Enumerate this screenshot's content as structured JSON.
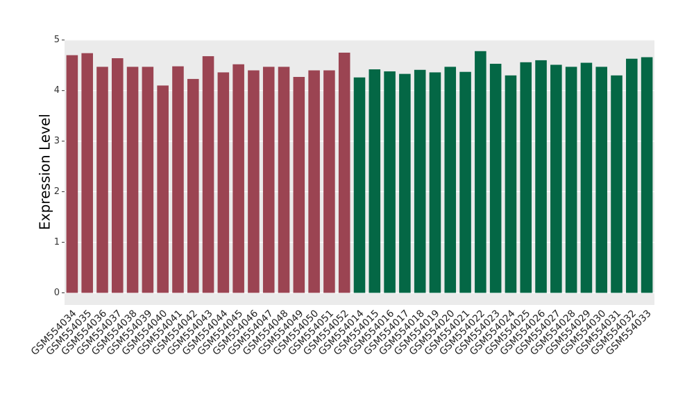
{
  "chart_data": {
    "type": "bar",
    "y_label": "Expression Level",
    "categories": [
      "GSM554034",
      "GSM554035",
      "GSM554036",
      "GSM554037",
      "GSM554038",
      "GSM554039",
      "GSM554040",
      "GSM554041",
      "GSM554042",
      "GSM554043",
      "GSM554044",
      "GSM554045",
      "GSM554046",
      "GSM554047",
      "GSM554048",
      "GSM554049",
      "GSM554050",
      "GSM554051",
      "GSM554052",
      "GSM554014",
      "GSM554015",
      "GSM554016",
      "GSM554017",
      "GSM554018",
      "GSM554019",
      "GSM554020",
      "GSM554021",
      "GSM554022",
      "GSM554023",
      "GSM554024",
      "GSM554025",
      "GSM554026",
      "GSM554027",
      "GSM554028",
      "GSM554029",
      "GSM554030",
      "GSM554031",
      "GSM554032",
      "GSM554033"
    ],
    "values": [
      4.7,
      4.74,
      4.47,
      4.64,
      4.47,
      4.47,
      4.1,
      4.48,
      4.23,
      4.68,
      4.36,
      4.52,
      4.4,
      4.47,
      4.47,
      4.27,
      4.4,
      4.4,
      4.75,
      4.26,
      4.42,
      4.38,
      4.33,
      4.41,
      4.36,
      4.47,
      4.37,
      4.78,
      4.53,
      4.3,
      4.56,
      4.6,
      4.51,
      4.47,
      4.55,
      4.47,
      4.3,
      4.63,
      4.66
    ],
    "colors": [
      "#9b4452",
      "#9b4452",
      "#9b4452",
      "#9b4452",
      "#9b4452",
      "#9b4452",
      "#9b4452",
      "#9b4452",
      "#9b4452",
      "#9b4452",
      "#9b4452",
      "#9b4452",
      "#9b4452",
      "#9b4452",
      "#9b4452",
      "#9b4452",
      "#9b4452",
      "#9b4452",
      "#9b4452",
      "#046745",
      "#046745",
      "#046745",
      "#046745",
      "#046745",
      "#046745",
      "#046745",
      "#046745",
      "#046745",
      "#046745",
      "#046745",
      "#046745",
      "#046745",
      "#046745",
      "#046745",
      "#046745",
      "#046745",
      "#046745",
      "#046745",
      "#046745"
    ],
    "ylim": [
      -0.24,
      5.01
    ],
    "yticks": [
      0,
      1,
      2,
      3,
      4,
      5
    ],
    "grid": true,
    "panel_background": "#ebebeb"
  }
}
